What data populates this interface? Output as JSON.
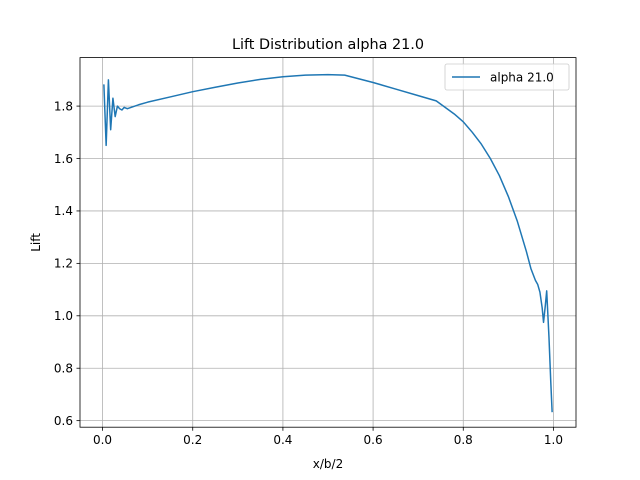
{
  "chart_data": {
    "type": "line",
    "title": "Lift Distribution alpha 21.0",
    "xlabel": "x/b/2",
    "ylabel": "Lift",
    "xlim": [
      -0.05,
      1.05
    ],
    "ylim": [
      0.575,
      1.985
    ],
    "xticks": [
      0.0,
      0.2,
      0.4,
      0.6,
      0.8,
      1.0
    ],
    "xtick_labels": [
      "0.0",
      "0.2",
      "0.4",
      "0.6",
      "0.8",
      "1.0"
    ],
    "yticks": [
      0.6,
      0.8,
      1.0,
      1.2,
      1.4,
      1.6,
      1.8
    ],
    "ytick_labels": [
      "0.6",
      "0.8",
      "1.0",
      "1.2",
      "1.4",
      "1.6",
      "1.8"
    ],
    "grid": true,
    "legend_position": "top-right",
    "series": [
      {
        "name": "alpha 21.0",
        "color": "#1f77b4",
        "x": [
          0.003,
          0.008,
          0.013,
          0.018,
          0.023,
          0.028,
          0.033,
          0.038,
          0.043,
          0.048,
          0.055,
          0.063,
          0.08,
          0.1,
          0.15,
          0.2,
          0.25,
          0.3,
          0.35,
          0.4,
          0.45,
          0.5,
          0.537,
          0.6,
          0.65,
          0.7,
          0.74,
          0.78,
          0.8,
          0.82,
          0.84,
          0.86,
          0.88,
          0.9,
          0.92,
          0.94,
          0.95,
          0.96,
          0.965,
          0.97,
          0.975,
          0.978,
          0.982,
          0.985,
          0.99,
          0.994,
          0.997
        ],
        "y": [
          1.88,
          1.65,
          1.9,
          1.71,
          1.83,
          1.76,
          1.8,
          1.79,
          1.785,
          1.795,
          1.79,
          1.795,
          1.805,
          1.815,
          1.835,
          1.855,
          1.872,
          1.888,
          1.902,
          1.912,
          1.918,
          1.92,
          1.918,
          1.89,
          1.865,
          1.84,
          1.82,
          1.77,
          1.74,
          1.7,
          1.655,
          1.6,
          1.535,
          1.455,
          1.36,
          1.245,
          1.18,
          1.135,
          1.12,
          1.09,
          1.03,
          0.975,
          1.04,
          1.095,
          0.92,
          0.75,
          0.635
        ]
      }
    ]
  }
}
